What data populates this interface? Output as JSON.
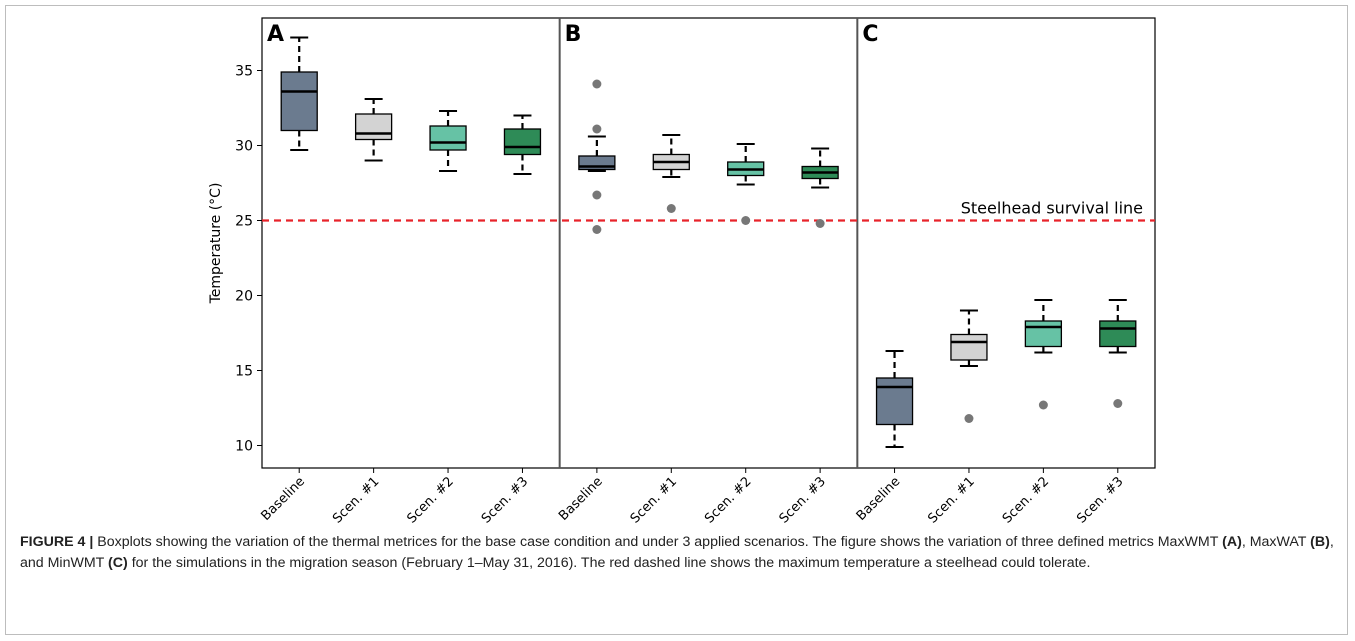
{
  "chart_data": {
    "type": "boxplot",
    "ylabel": "Temperature (°C)",
    "ylim": [
      8.5,
      38.5
    ],
    "yticks": [
      10,
      15,
      20,
      25,
      30,
      35
    ],
    "categories": [
      "Baseline",
      "Scen. #1",
      "Scen. #2",
      "Scen. #3"
    ],
    "colors": [
      "#6b7b8f",
      "#d3d3d3",
      "#66c2a5",
      "#2e8b57"
    ],
    "panels": [
      {
        "label": "A",
        "boxes": [
          {
            "category": "Baseline",
            "whisker_low": 29.7,
            "q1": 31.0,
            "median": 33.6,
            "q3": 34.9,
            "whisker_high": 37.2,
            "outliers": []
          },
          {
            "category": "Scen. #1",
            "whisker_low": 29.0,
            "q1": 30.4,
            "median": 30.8,
            "q3": 32.1,
            "whisker_high": 33.1,
            "outliers": []
          },
          {
            "category": "Scen. #2",
            "whisker_low": 28.3,
            "q1": 29.7,
            "median": 30.2,
            "q3": 31.3,
            "whisker_high": 32.3,
            "outliers": []
          },
          {
            "category": "Scen. #3",
            "whisker_low": 28.1,
            "q1": 29.4,
            "median": 29.9,
            "q3": 31.1,
            "whisker_high": 32.0,
            "outliers": []
          }
        ]
      },
      {
        "label": "B",
        "boxes": [
          {
            "category": "Baseline",
            "whisker_low": 28.3,
            "q1": 28.4,
            "median": 28.6,
            "q3": 29.3,
            "whisker_high": 30.6,
            "outliers": [
              34.1,
              31.1,
              26.7,
              24.4
            ]
          },
          {
            "category": "Scen. #1",
            "whisker_low": 27.9,
            "q1": 28.4,
            "median": 28.9,
            "q3": 29.4,
            "whisker_high": 30.7,
            "outliers": [
              25.8
            ]
          },
          {
            "category": "Scen. #2",
            "whisker_low": 27.4,
            "q1": 28.0,
            "median": 28.4,
            "q3": 28.9,
            "whisker_high": 30.1,
            "outliers": [
              25.0
            ]
          },
          {
            "category": "Scen. #3",
            "whisker_low": 27.2,
            "q1": 27.8,
            "median": 28.2,
            "q3": 28.6,
            "whisker_high": 29.8,
            "outliers": [
              24.8
            ]
          }
        ]
      },
      {
        "label": "C",
        "boxes": [
          {
            "category": "Baseline",
            "whisker_low": 9.9,
            "q1": 11.4,
            "median": 13.9,
            "q3": 14.5,
            "whisker_high": 16.3,
            "outliers": []
          },
          {
            "category": "Scen. #1",
            "whisker_low": 15.3,
            "q1": 15.7,
            "median": 16.9,
            "q3": 17.4,
            "whisker_high": 19.0,
            "outliers": [
              11.8
            ]
          },
          {
            "category": "Scen. #2",
            "whisker_low": 16.2,
            "q1": 16.6,
            "median": 17.9,
            "q3": 18.3,
            "whisker_high": 19.7,
            "outliers": [
              12.7
            ]
          },
          {
            "category": "Scen. #3",
            "whisker_low": 16.2,
            "q1": 16.6,
            "median": 17.8,
            "q3": 18.3,
            "whisker_high": 19.7,
            "outliers": [
              12.8
            ]
          }
        ]
      }
    ],
    "reference_line": {
      "value": 25,
      "label": "Steelhead survival line",
      "color": "#e8232a",
      "style": "dashed"
    },
    "grid": false
  },
  "caption": {
    "lead": "FIGURE 4 |",
    "text1": " Boxplots showing the variation of the thermal metrices for the base case condition and under 3 applied scenarios. The figure shows the variation of three defined metrics MaxWMT ",
    "a": "(A)",
    "text2": ", MaxWAT ",
    "b": "(B)",
    "text3": ", and MinWMT ",
    "c": "(C)",
    "text4": " for the simulations in the migration season (February 1–May 31, 2016). The red dashed line shows the maximum temperature a steelhead could tolerate."
  }
}
